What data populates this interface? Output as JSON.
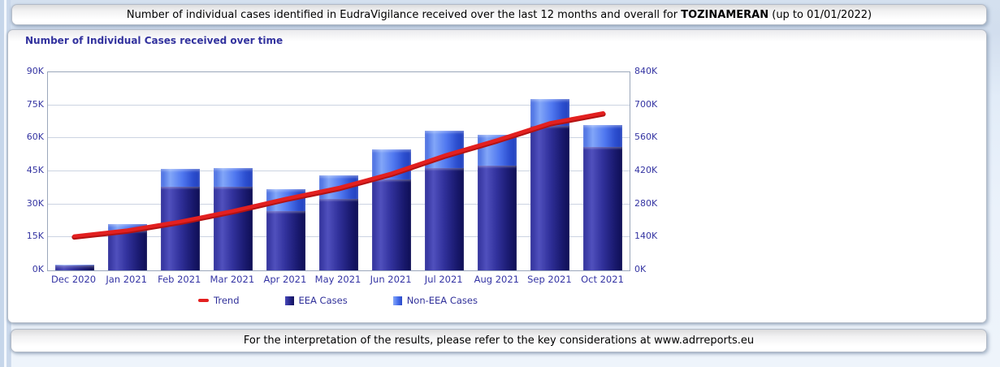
{
  "header": {
    "prefix": "Number of individual cases identified in EudraVigilance received over the last 12 months and overall for ",
    "drug": "TOZINAMERAN",
    "suffix": " (up to 01/01/2022)"
  },
  "footer": {
    "text": "For the interpretation of the results, please refer to the key considerations at www.adrreports.eu"
  },
  "chart_data": {
    "type": "bar",
    "stacked": true,
    "title": "Number of Individual Cases received over time",
    "values_unit": "K",
    "categories": [
      "Dec 2020",
      "Jan 2021",
      "Feb 2021",
      "Mar 2021",
      "Apr 2021",
      "May 2021",
      "Jun 2021",
      "Jul 2021",
      "Aug 2021",
      "Sep 2021",
      "Oct 2021"
    ],
    "series": [
      {
        "name": "EEA Cases",
        "type": "bar",
        "axis": "left",
        "values_k": [
          2.3,
          18,
          38,
          38,
          27,
          32.5,
          41.5,
          46.5,
          47.5,
          65.5,
          56
        ]
      },
      {
        "name": "Non-EEA Cases",
        "type": "bar",
        "axis": "left",
        "values_k": [
          0.2,
          3,
          8,
          8.5,
          10,
          10.5,
          13.5,
          17,
          14,
          12.5,
          10
        ]
      },
      {
        "name": "Trend",
        "type": "line",
        "axis": "right",
        "values_k": [
          145,
          170,
          207,
          252,
          304,
          350,
          411,
          487,
          553,
          625,
          667
        ]
      }
    ],
    "left_axis": {
      "min": 0,
      "max": 90,
      "ticks": [
        "0K",
        "15K",
        "30K",
        "45K",
        "60K",
        "75K",
        "90K"
      ]
    },
    "right_axis": {
      "min": 0,
      "max": 840,
      "ticks": [
        "0K",
        "140K",
        "280K",
        "420K",
        "560K",
        "700K",
        "840K"
      ]
    },
    "grid": "horizontal",
    "legend": [
      "Trend",
      "EEA Cases",
      "Non-EEA Cases"
    ],
    "legend_position": "bottom-center"
  },
  "colors": {
    "eea_bar": "#2b2b92",
    "non_eea_bar": "#4a72ee",
    "trend_line": "#e32020",
    "axis_text": "#3434a2",
    "panel_title": "#32329e",
    "gridline": "#ccd4e2"
  }
}
